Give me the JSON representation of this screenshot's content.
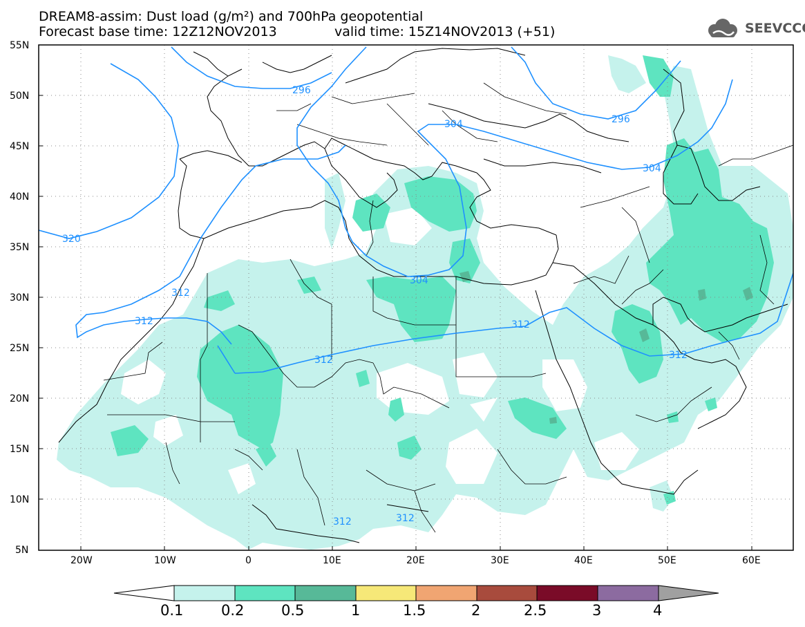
{
  "title": {
    "line1": "DREAM8-assim: Dust load (g/m²) and 700hPa geopotential",
    "line2": "Forecast base time: 12Z12NOV2013",
    "valid": "valid time: 15Z14NOV2013 (+51)"
  },
  "logo": {
    "text": "SEEVCCC",
    "icon": "cloud-icon"
  },
  "map": {
    "lon_range": [
      -25,
      65
    ],
    "lat_range": [
      5,
      55
    ],
    "lat_labels": [
      "55N",
      "50N",
      "45N",
      "40N",
      "35N",
      "30N",
      "25N",
      "20N",
      "15N",
      "10N",
      "5N"
    ],
    "lon_labels": [
      "20W",
      "10W",
      "0",
      "10E",
      "20E",
      "30E",
      "40E",
      "50E",
      "60E"
    ],
    "gridlines": "dotted"
  },
  "contours": {
    "color": "#1e90ff",
    "labels": [
      "296",
      "296",
      "304",
      "304",
      "304",
      "312",
      "312",
      "312",
      "312",
      "312",
      "312",
      "312",
      "320"
    ]
  },
  "colorbar": {
    "labels": [
      "0.1",
      "0.2",
      "0.5",
      "1",
      "1.5",
      "2",
      "2.5",
      "3",
      "4"
    ],
    "colors": [
      "#c5f2ec",
      "#5ee4c0",
      "#57b998",
      "#f6e878",
      "#f0a572",
      "#a84b3d",
      "#7a0b28",
      "#8c6ba0"
    ],
    "under_color": "#ffffff",
    "over_color": "#a0a0a0"
  }
}
